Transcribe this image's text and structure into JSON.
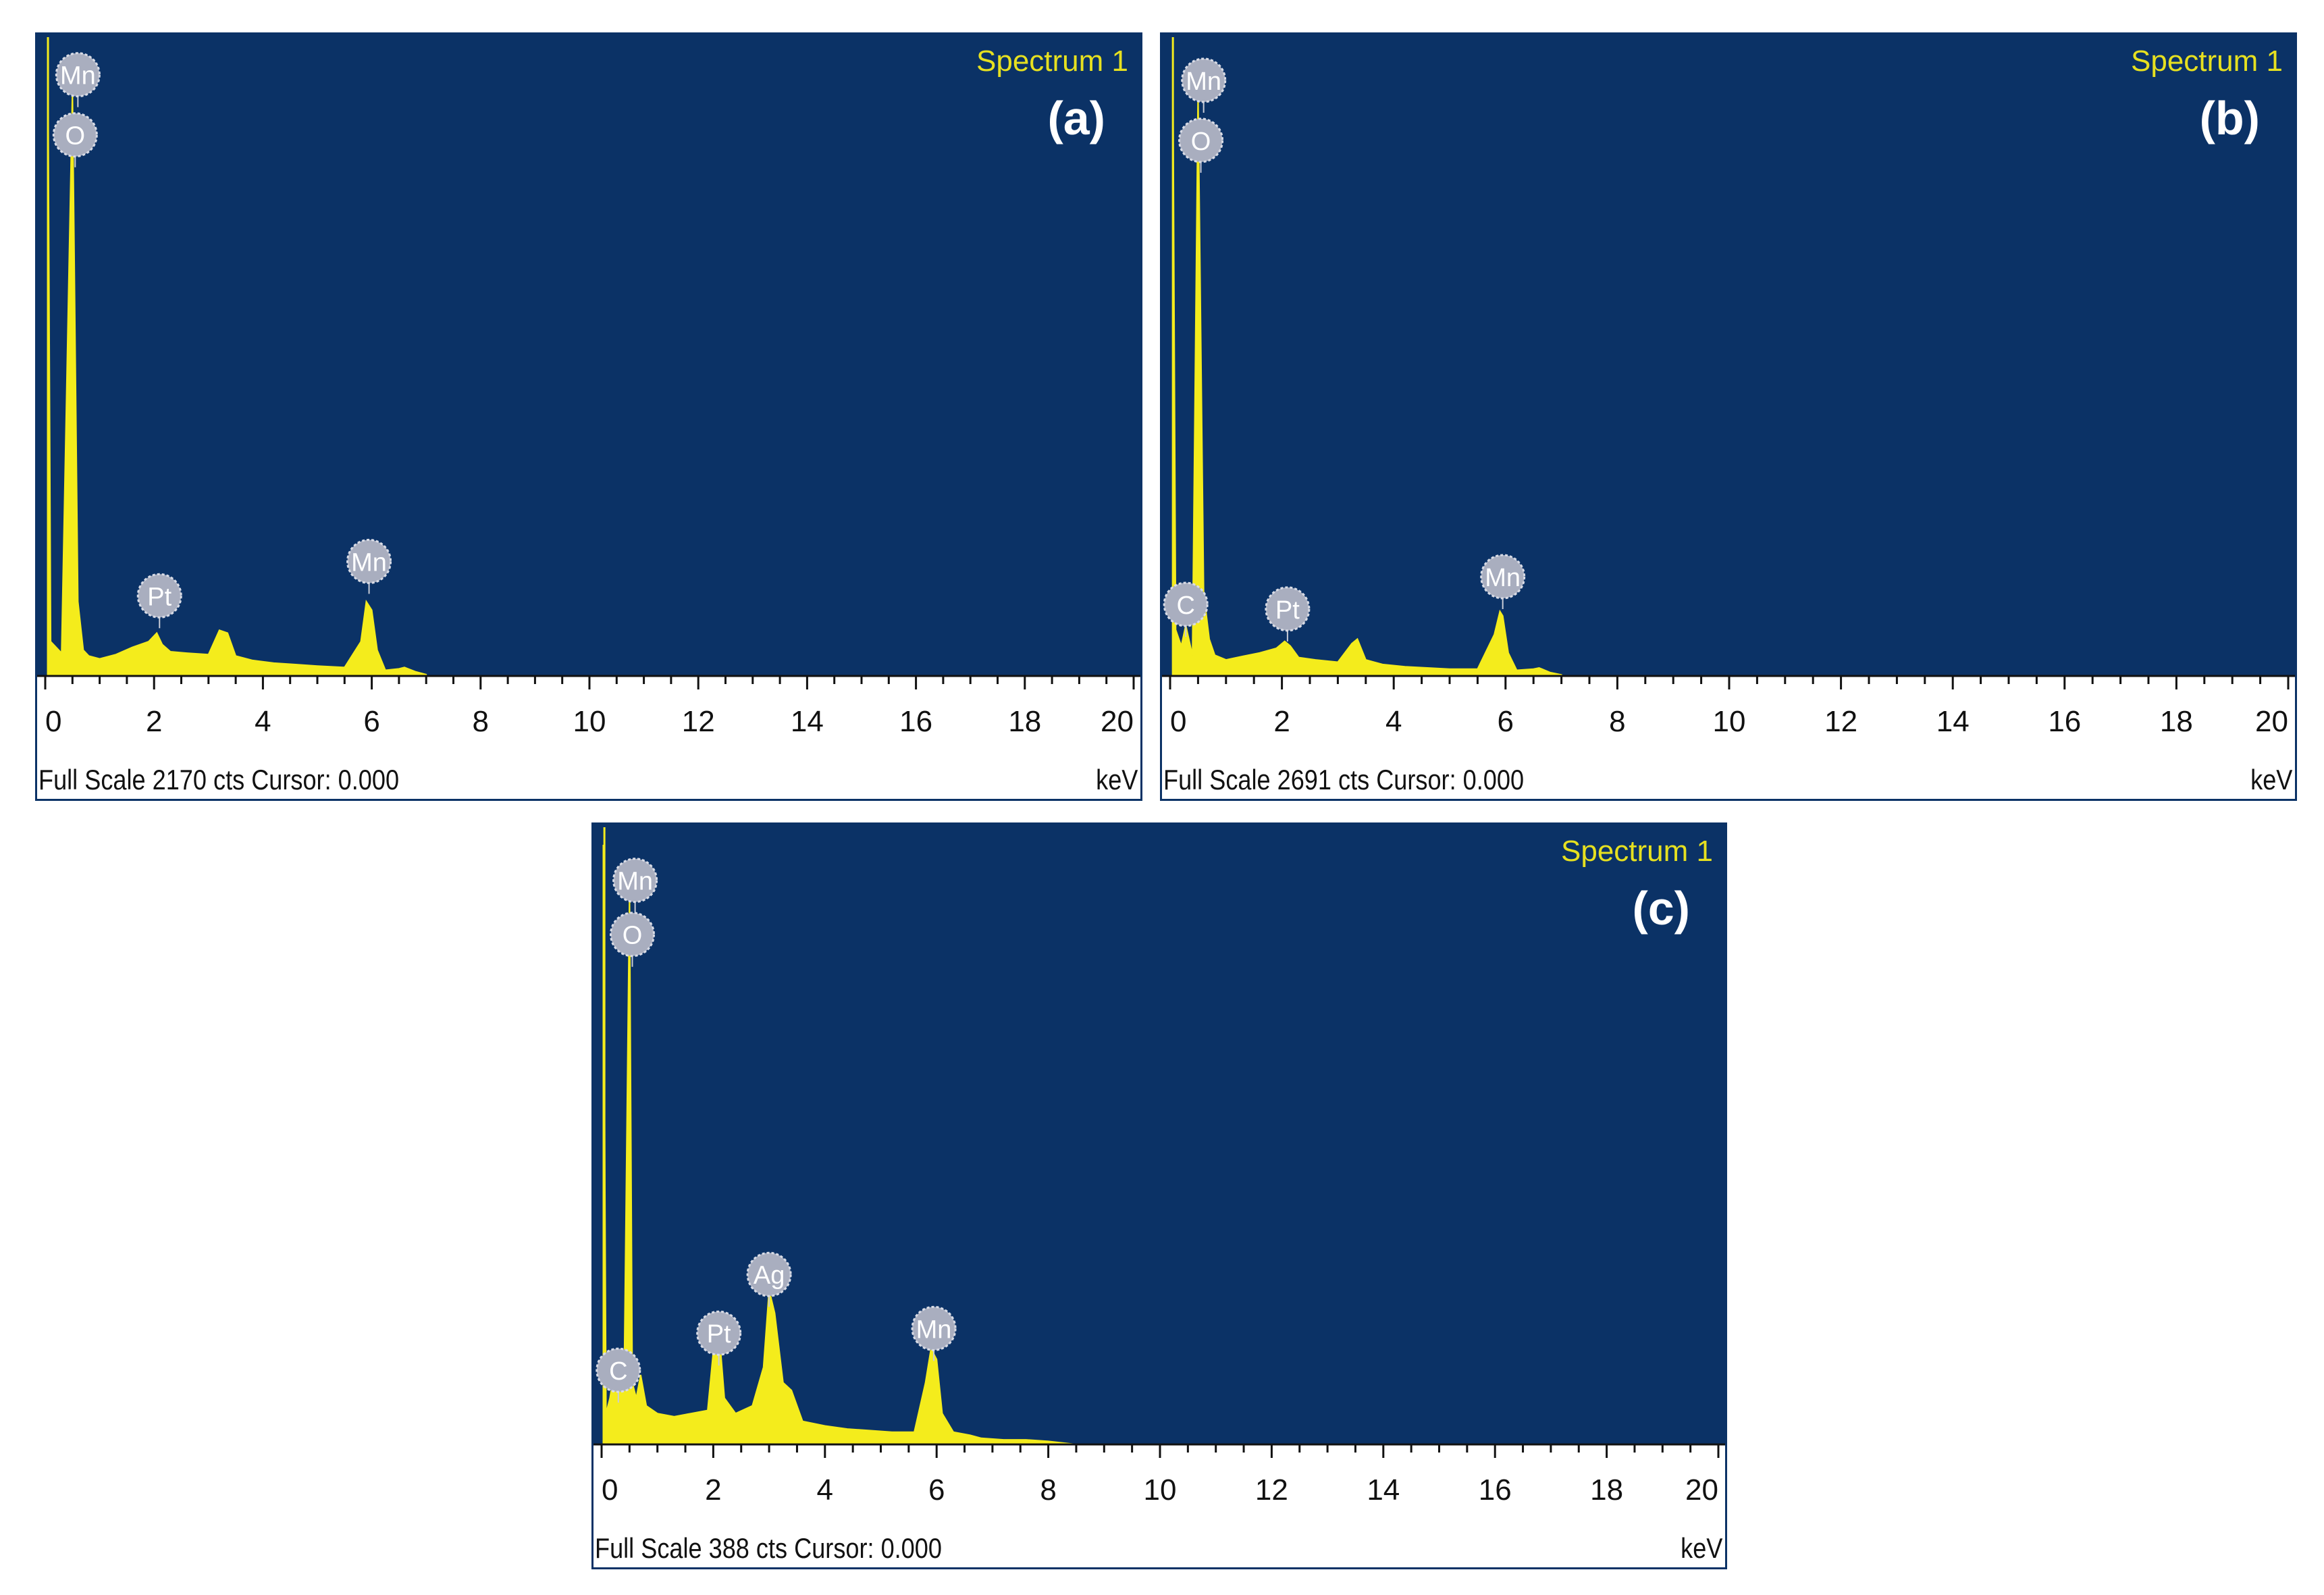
{
  "chart_data": [
    {
      "id": "a",
      "type": "area",
      "panel_label": "(a)",
      "spectrum_label": "Spectrum 1",
      "x_unit": "keV",
      "xlim": [
        0,
        20
      ],
      "x_ticks": [
        "0",
        "2",
        "4",
        "6",
        "8",
        "10",
        "12",
        "14",
        "16",
        "18",
        "20"
      ],
      "full_scale_cts": 2170,
      "status_text": "Full Scale 2170 cts Cursor: 0.000",
      "series": [
        {
          "x": [
            0.05,
            0.1,
            0.3,
            0.5,
            0.6,
            0.7,
            0.8,
            1.0,
            1.3,
            1.6,
            1.9,
            2.05,
            2.15,
            2.3,
            2.6,
            3.0,
            3.2,
            3.35,
            3.5,
            3.8,
            4.2,
            4.6,
            5.0,
            5.5,
            5.8,
            5.9,
            6.0,
            6.1,
            6.25,
            6.5,
            6.6,
            6.8,
            7.0
          ],
          "y": [
            2170,
            120,
            80,
            2050,
            260,
            90,
            70,
            60,
            75,
            100,
            120,
            150,
            110,
            85,
            80,
            75,
            160,
            150,
            70,
            55,
            45,
            40,
            35,
            30,
            120,
            260,
            230,
            90,
            20,
            25,
            30,
            15,
            5
          ]
        }
      ],
      "peak_labels": [
        {
          "text": "Mn",
          "x": 0.6,
          "y": 2100
        },
        {
          "text": "O",
          "x": 0.55,
          "y": 1890
        },
        {
          "text": "Pt",
          "x": 2.1,
          "y": 280
        },
        {
          "text": "Mn",
          "x": 5.95,
          "y": 400
        }
      ]
    },
    {
      "id": "b",
      "type": "area",
      "panel_label": "(b)",
      "spectrum_label": "Spectrum 1",
      "x_unit": "keV",
      "xlim": [
        0,
        20
      ],
      "x_ticks": [
        "0",
        "2",
        "4",
        "6",
        "8",
        "10",
        "12",
        "14",
        "16",
        "18",
        "20"
      ],
      "full_scale_cts": 2691,
      "status_text": "Full Scale 2691 cts Cursor: 0.000",
      "series": [
        {
          "x": [
            0.05,
            0.1,
            0.2,
            0.28,
            0.4,
            0.5,
            0.6,
            0.7,
            0.8,
            1.0,
            1.3,
            1.6,
            1.9,
            2.05,
            2.15,
            2.3,
            2.6,
            3.0,
            3.25,
            3.35,
            3.5,
            3.8,
            4.2,
            4.6,
            5.0,
            5.5,
            5.8,
            5.9,
            5.95,
            6.05,
            6.2,
            6.5,
            6.6,
            6.8,
            7.0
          ],
          "y": [
            2691,
            200,
            130,
            220,
            90,
            2540,
            360,
            160,
            90,
            70,
            85,
            100,
            120,
            150,
            130,
            80,
            70,
            60,
            140,
            160,
            70,
            50,
            40,
            35,
            30,
            30,
            180,
            280,
            260,
            100,
            25,
            30,
            35,
            15,
            5
          ]
        }
      ],
      "peak_labels": [
        {
          "text": "Mn",
          "x": 0.6,
          "y": 2580
        },
        {
          "text": "O",
          "x": 0.55,
          "y": 2320
        },
        {
          "text": "C",
          "x": 0.28,
          "y": 310
        },
        {
          "text": "Pt",
          "x": 2.1,
          "y": 290
        },
        {
          "text": "Mn",
          "x": 5.95,
          "y": 430
        }
      ]
    },
    {
      "id": "c",
      "type": "area",
      "panel_label": "(c)",
      "spectrum_label": "Spectrum 1",
      "x_unit": "keV",
      "xlim": [
        0,
        20
      ],
      "x_ticks": [
        "0",
        "2",
        "4",
        "6",
        "8",
        "10",
        "12",
        "14",
        "16",
        "18",
        "20"
      ],
      "full_scale_cts": 388,
      "status_text": "Full Scale 388 cts Cursor: 0.000",
      "series": [
        {
          "x": [
            0.03,
            0.08,
            0.15,
            0.28,
            0.4,
            0.5,
            0.55,
            0.62,
            0.7,
            0.8,
            1.0,
            1.3,
            1.6,
            1.9,
            2.0,
            2.1,
            2.2,
            2.4,
            2.7,
            2.9,
            3.0,
            3.1,
            3.25,
            3.4,
            3.6,
            4.0,
            4.4,
            4.8,
            5.2,
            5.6,
            5.8,
            5.9,
            6.0,
            6.1,
            6.3,
            6.6,
            6.8,
            7.2,
            7.6,
            8.0,
            8.5
          ],
          "y": [
            388,
            20,
            30,
            60,
            30,
            360,
            40,
            30,
            45,
            25,
            20,
            18,
            20,
            22,
            60,
            75,
            30,
            20,
            25,
            50,
            100,
            85,
            40,
            35,
            15,
            12,
            10,
            9,
            8,
            8,
            40,
            62,
            55,
            20,
            8,
            6,
            4,
            3,
            3,
            2,
            0
          ]
        }
      ],
      "peak_labels": [
        {
          "text": "Mn",
          "x": 0.6,
          "y": 365
        },
        {
          "text": "O",
          "x": 0.55,
          "y": 330
        },
        {
          "text": "C",
          "x": 0.3,
          "y": 48
        },
        {
          "text": "Pt",
          "x": 2.1,
          "y": 72
        },
        {
          "text": "Ag",
          "x": 3.0,
          "y": 110
        },
        {
          "text": "Mn",
          "x": 5.95,
          "y": 75
        }
      ]
    }
  ]
}
